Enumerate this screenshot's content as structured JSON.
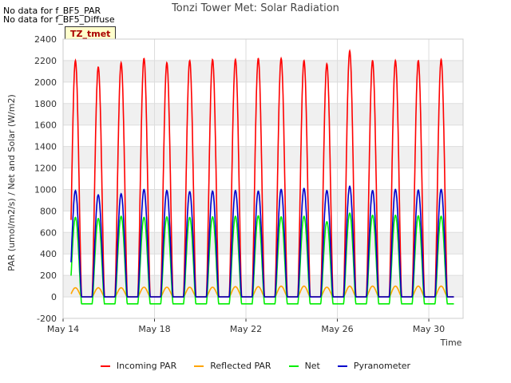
{
  "notes": [
    "No data for f_BF5_PAR",
    "No data for f_BF5_Diffuse"
  ],
  "chart_data": {
    "type": "line",
    "title": "Tonzi Tower Met: Solar Radiation",
    "xlabel": "Time",
    "ylabel": "PAR (umol/m2/s) / Net and Solar (W/m2)",
    "badge": "TZ_tmet",
    "xlim": [
      14,
      31.5
    ],
    "ylim": [
      -200,
      2400
    ],
    "yticks": [
      -200,
      0,
      200,
      400,
      600,
      800,
      1000,
      1200,
      1400,
      1600,
      1800,
      2000,
      2200,
      2400
    ],
    "xticks": [
      {
        "value": 14,
        "label": "May 14"
      },
      {
        "value": 18,
        "label": "May 18"
      },
      {
        "value": 22,
        "label": "May 22"
      },
      {
        "value": 26,
        "label": "May 26"
      },
      {
        "value": 30,
        "label": "May 30"
      }
    ],
    "grid": true,
    "legend_position": "bottom",
    "days": [
      14,
      15,
      16,
      17,
      18,
      19,
      20,
      21,
      22,
      23,
      24,
      25,
      26,
      27,
      28,
      29,
      30
    ],
    "series": [
      {
        "name": "Incoming PAR",
        "color": "#ff0000",
        "night": 0,
        "peaks": [
          2200,
          2140,
          2180,
          2220,
          2180,
          2200,
          2210,
          2210,
          2220,
          2220,
          2200,
          2170,
          2290,
          2200,
          2200,
          2200,
          2210
        ]
      },
      {
        "name": "Reflected PAR",
        "color": "#ffa500",
        "night": 0,
        "peaks": [
          85,
          85,
          85,
          90,
          90,
          90,
          90,
          95,
          95,
          100,
          100,
          90,
          100,
          100,
          100,
          100,
          100
        ]
      },
      {
        "name": "Net",
        "color": "#00ee00",
        "night": -65,
        "peaks": [
          740,
          730,
          750,
          740,
          745,
          740,
          745,
          750,
          755,
          745,
          750,
          700,
          780,
          760,
          760,
          755,
          750
        ]
      },
      {
        "name": "Pyranometer",
        "color": "#0000cc",
        "night": 0,
        "peaks": [
          990,
          950,
          960,
          1000,
          990,
          980,
          985,
          990,
          985,
          1000,
          1010,
          990,
          1030,
          990,
          1000,
          995,
          1000
        ]
      }
    ]
  }
}
